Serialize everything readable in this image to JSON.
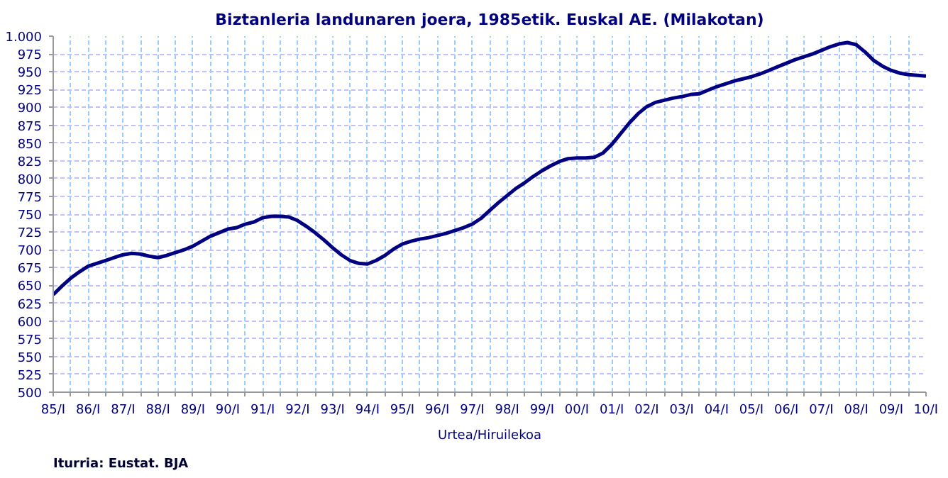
{
  "chart_data": {
    "type": "line",
    "title": "Biztanleria landunaren joera, 1985etik. Euskal AE. (Milakotan)",
    "xlabel": "Urtea/Hiruilekoa",
    "annotations": [
      "Iturria: Eustat. BJA"
    ],
    "categories": [
      "85/I",
      null,
      null,
      null,
      "86/I",
      null,
      null,
      null,
      "87/I",
      null,
      null,
      null,
      "88/I",
      null,
      null,
      null,
      "89/I",
      null,
      null,
      null,
      "90/I",
      null,
      null,
      null,
      "91/I",
      null,
      null,
      null,
      "92/I",
      null,
      null,
      null,
      "93/I",
      null,
      null,
      null,
      "94/I",
      null,
      null,
      null,
      "95/I",
      null,
      null,
      null,
      "96/I",
      null,
      null,
      null,
      "97/I",
      null,
      null,
      null,
      "98/I",
      null,
      null,
      null,
      "99/I",
      null,
      null,
      null,
      "00/I",
      null,
      null,
      null,
      "01/I",
      null,
      null,
      null,
      "02/I",
      null,
      null,
      null,
      "03/I",
      null,
      null,
      null,
      "04/I",
      null,
      null,
      null,
      "05/I",
      null,
      null,
      null,
      "06/I",
      null,
      null,
      null,
      "07/I",
      null,
      null,
      null,
      "08/I",
      null,
      null,
      null,
      "09/I",
      null,
      null,
      null,
      "10/I"
    ],
    "series": [
      {
        "color": "#000080",
        "values": [
          637,
          649,
          660,
          669,
          677,
          681,
          685,
          689,
          693,
          695,
          694,
          691,
          689,
          692,
          696,
          700,
          705,
          712,
          719,
          724,
          729,
          731,
          736,
          739,
          745,
          747,
          747,
          746,
          741,
          733,
          724,
          714,
          703,
          693,
          685,
          681,
          680,
          685,
          692,
          701,
          708,
          712,
          715,
          717,
          720,
          723,
          727,
          731,
          736,
          744,
          755,
          766,
          776,
          786,
          794,
          803,
          811,
          818,
          824,
          828,
          829,
          829,
          830,
          836,
          848,
          863,
          878,
          891,
          901,
          907,
          910,
          913,
          915,
          918,
          919,
          924,
          929,
          933,
          937,
          940,
          943,
          947,
          952,
          957,
          962,
          967,
          971,
          975,
          980,
          985,
          989,
          991,
          988,
          978,
          966,
          958,
          952,
          948,
          946,
          945,
          944
        ]
      }
    ],
    "ylim": [
      500,
      1000
    ],
    "yticks": [
      500,
      525,
      550,
      575,
      600,
      625,
      650,
      675,
      700,
      725,
      750,
      775,
      800,
      825,
      850,
      875,
      900,
      925,
      950,
      975,
      {
        "value": 1000,
        "label": "1.000"
      }
    ],
    "grid": true,
    "marker": "none",
    "line_style": "solid"
  }
}
